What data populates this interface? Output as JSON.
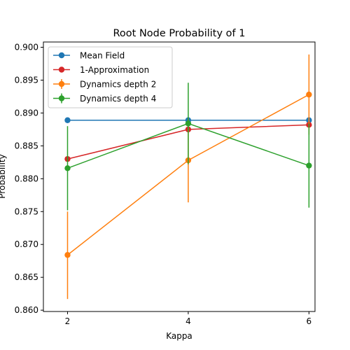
{
  "chart_data": {
    "type": "line",
    "title": "Root Node Probability of 1",
    "xlabel": "Kappa",
    "ylabel": "Probability",
    "x": [
      2,
      4,
      6
    ],
    "xlim": [
      1.6,
      6.1
    ],
    "ylim": [
      0.8598,
      0.9008
    ],
    "xticks": [
      2,
      4,
      6
    ],
    "yticks": [
      0.86,
      0.865,
      0.87,
      0.875,
      0.88,
      0.885,
      0.89,
      0.895,
      0.9
    ],
    "ytick_labels": [
      "0.860",
      "0.865",
      "0.870",
      "0.875",
      "0.880",
      "0.885",
      "0.890",
      "0.895",
      "0.900"
    ],
    "grid": false,
    "legend_position": "top-left",
    "series": [
      {
        "name": "Mean Field",
        "color": "#1f77b4",
        "values": [
          0.8889,
          0.8889,
          0.8889
        ]
      },
      {
        "name": "1-Approximation",
        "color": "#d62728",
        "values": [
          0.883,
          0.8875,
          0.8882
        ]
      },
      {
        "name": "Dynamics depth 2",
        "color": "#ff7f0e",
        "values": [
          0.8684,
          0.8828,
          0.8928
        ],
        "error_low": [
          0.8617,
          0.8764,
          0.8867
        ],
        "error_high": [
          0.875,
          0.8892,
          0.8989
        ]
      },
      {
        "name": "Dynamics depth 4",
        "color": "#2ca02c",
        "values": [
          0.8816,
          0.8884,
          0.882
        ],
        "error_low": [
          0.8752,
          0.8822,
          0.8756
        ],
        "error_high": [
          0.888,
          0.8946,
          0.8884
        ]
      }
    ]
  }
}
